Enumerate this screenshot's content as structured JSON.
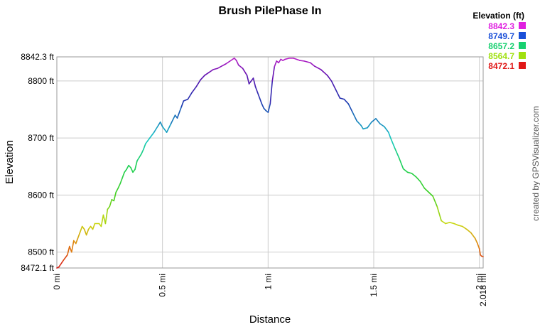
{
  "chart_data": {
    "type": "line",
    "title": "Brush PilePhase In",
    "xlabel": "Distance",
    "ylabel": "Elevation",
    "xlim": [
      0,
      2.018
    ],
    "ylim": [
      8472.1,
      8842.3
    ],
    "x_ticks": [
      {
        "value": 0,
        "label": "0 mi"
      },
      {
        "value": 0.5,
        "label": "0.5 mi"
      },
      {
        "value": 1,
        "label": "1 mi"
      },
      {
        "value": 1.5,
        "label": "1.5 mi"
      },
      {
        "value": 2,
        "label": "2 mi"
      },
      {
        "value": 2.018,
        "label": "2.018 mi"
      }
    ],
    "y_ticks": [
      {
        "value": 8472.1,
        "label": "8472.1 ft"
      },
      {
        "value": 8500,
        "label": "8500 ft"
      },
      {
        "value": 8600,
        "label": "8600 ft"
      },
      {
        "value": 8700,
        "label": "8700 ft"
      },
      {
        "value": 8800,
        "label": "8800 ft"
      },
      {
        "value": 8842.3,
        "label": "8842.3 ft"
      }
    ],
    "grid": true,
    "legend": {
      "title": "Elevation (ft)",
      "position": "top-right",
      "entries": [
        {
          "label": "8842.3",
          "color": "#e020e0"
        },
        {
          "label": "8749.7",
          "color": "#1a4fd8"
        },
        {
          "label": "8657.2",
          "color": "#18d070"
        },
        {
          "label": "8564.7",
          "color": "#a0e010"
        },
        {
          "label": "8472.1",
          "color": "#e01818"
        }
      ]
    },
    "color_scale": [
      {
        "value": 8472.1,
        "color": "#d81818"
      },
      {
        "value": 8510,
        "color": "#e08010"
      },
      {
        "value": 8550,
        "color": "#c8d810"
      },
      {
        "value": 8600,
        "color": "#40d020"
      },
      {
        "value": 8660,
        "color": "#18d060"
      },
      {
        "value": 8700,
        "color": "#18c8c8"
      },
      {
        "value": 8760,
        "color": "#1838b0"
      },
      {
        "value": 8810,
        "color": "#6010b0"
      },
      {
        "value": 8842.3,
        "color": "#c020c8"
      }
    ],
    "series": [
      {
        "x": [
          0,
          0.01,
          0.03,
          0.05,
          0.06,
          0.07,
          0.08,
          0.09,
          0.1,
          0.11,
          0.12,
          0.13,
          0.14,
          0.15,
          0.16,
          0.17,
          0.18,
          0.2,
          0.21,
          0.22,
          0.23,
          0.24,
          0.25,
          0.26,
          0.27,
          0.28,
          0.29,
          0.3,
          0.31,
          0.32,
          0.33,
          0.34,
          0.35,
          0.36,
          0.37,
          0.38,
          0.4,
          0.41,
          0.42,
          0.44,
          0.46,
          0.48,
          0.49,
          0.5,
          0.52,
          0.54,
          0.56,
          0.57,
          0.59,
          0.6,
          0.62,
          0.64,
          0.66,
          0.68,
          0.7,
          0.72,
          0.74,
          0.76,
          0.78,
          0.8,
          0.82,
          0.84,
          0.85,
          0.86,
          0.88,
          0.9,
          0.91,
          0.92,
          0.93,
          0.94,
          0.95,
          0.96,
          0.97,
          0.98,
          0.99,
          1.0,
          1.01,
          1.02,
          1.03,
          1.04,
          1.05,
          1.06,
          1.07,
          1.08,
          1.1,
          1.12,
          1.15,
          1.17,
          1.2,
          1.22,
          1.25,
          1.28,
          1.3,
          1.32,
          1.34,
          1.36,
          1.38,
          1.4,
          1.42,
          1.44,
          1.45,
          1.47,
          1.49,
          1.51,
          1.53,
          1.55,
          1.57,
          1.58,
          1.6,
          1.62,
          1.64,
          1.66,
          1.68,
          1.7,
          1.72,
          1.74,
          1.76,
          1.78,
          1.8,
          1.82,
          1.84,
          1.86,
          1.88,
          1.9,
          1.92,
          1.94,
          1.96,
          1.98,
          1.99,
          2.0,
          2.005,
          2.01,
          2.018
        ],
        "y": [
          8472,
          8474,
          8485,
          8495,
          8510,
          8500,
          8520,
          8515,
          8525,
          8535,
          8545,
          8540,
          8530,
          8540,
          8545,
          8540,
          8550,
          8550,
          8545,
          8565,
          8550,
          8575,
          8580,
          8592,
          8590,
          8605,
          8612,
          8620,
          8630,
          8640,
          8645,
          8652,
          8648,
          8640,
          8645,
          8660,
          8672,
          8680,
          8690,
          8700,
          8710,
          8722,
          8728,
          8720,
          8710,
          8725,
          8740,
          8735,
          8755,
          8765,
          8768,
          8780,
          8790,
          8802,
          8810,
          8815,
          8820,
          8822,
          8826,
          8830,
          8835,
          8840,
          8836,
          8828,
          8822,
          8810,
          8795,
          8800,
          8805,
          8790,
          8780,
          8770,
          8760,
          8752,
          8748,
          8745,
          8760,
          8800,
          8825,
          8835,
          8832,
          8838,
          8836,
          8838,
          8840,
          8840,
          8836,
          8835,
          8832,
          8826,
          8820,
          8810,
          8800,
          8785,
          8770,
          8768,
          8760,
          8745,
          8730,
          8722,
          8716,
          8718,
          8728,
          8734,
          8725,
          8720,
          8710,
          8700,
          8682,
          8665,
          8646,
          8640,
          8638,
          8632,
          8624,
          8612,
          8605,
          8598,
          8580,
          8555,
          8550,
          8552,
          8550,
          8547,
          8545,
          8540,
          8534,
          8524,
          8516,
          8506,
          8495,
          8493,
          8492
        ]
      }
    ]
  },
  "credit": "created by GPSVisualizer.com"
}
